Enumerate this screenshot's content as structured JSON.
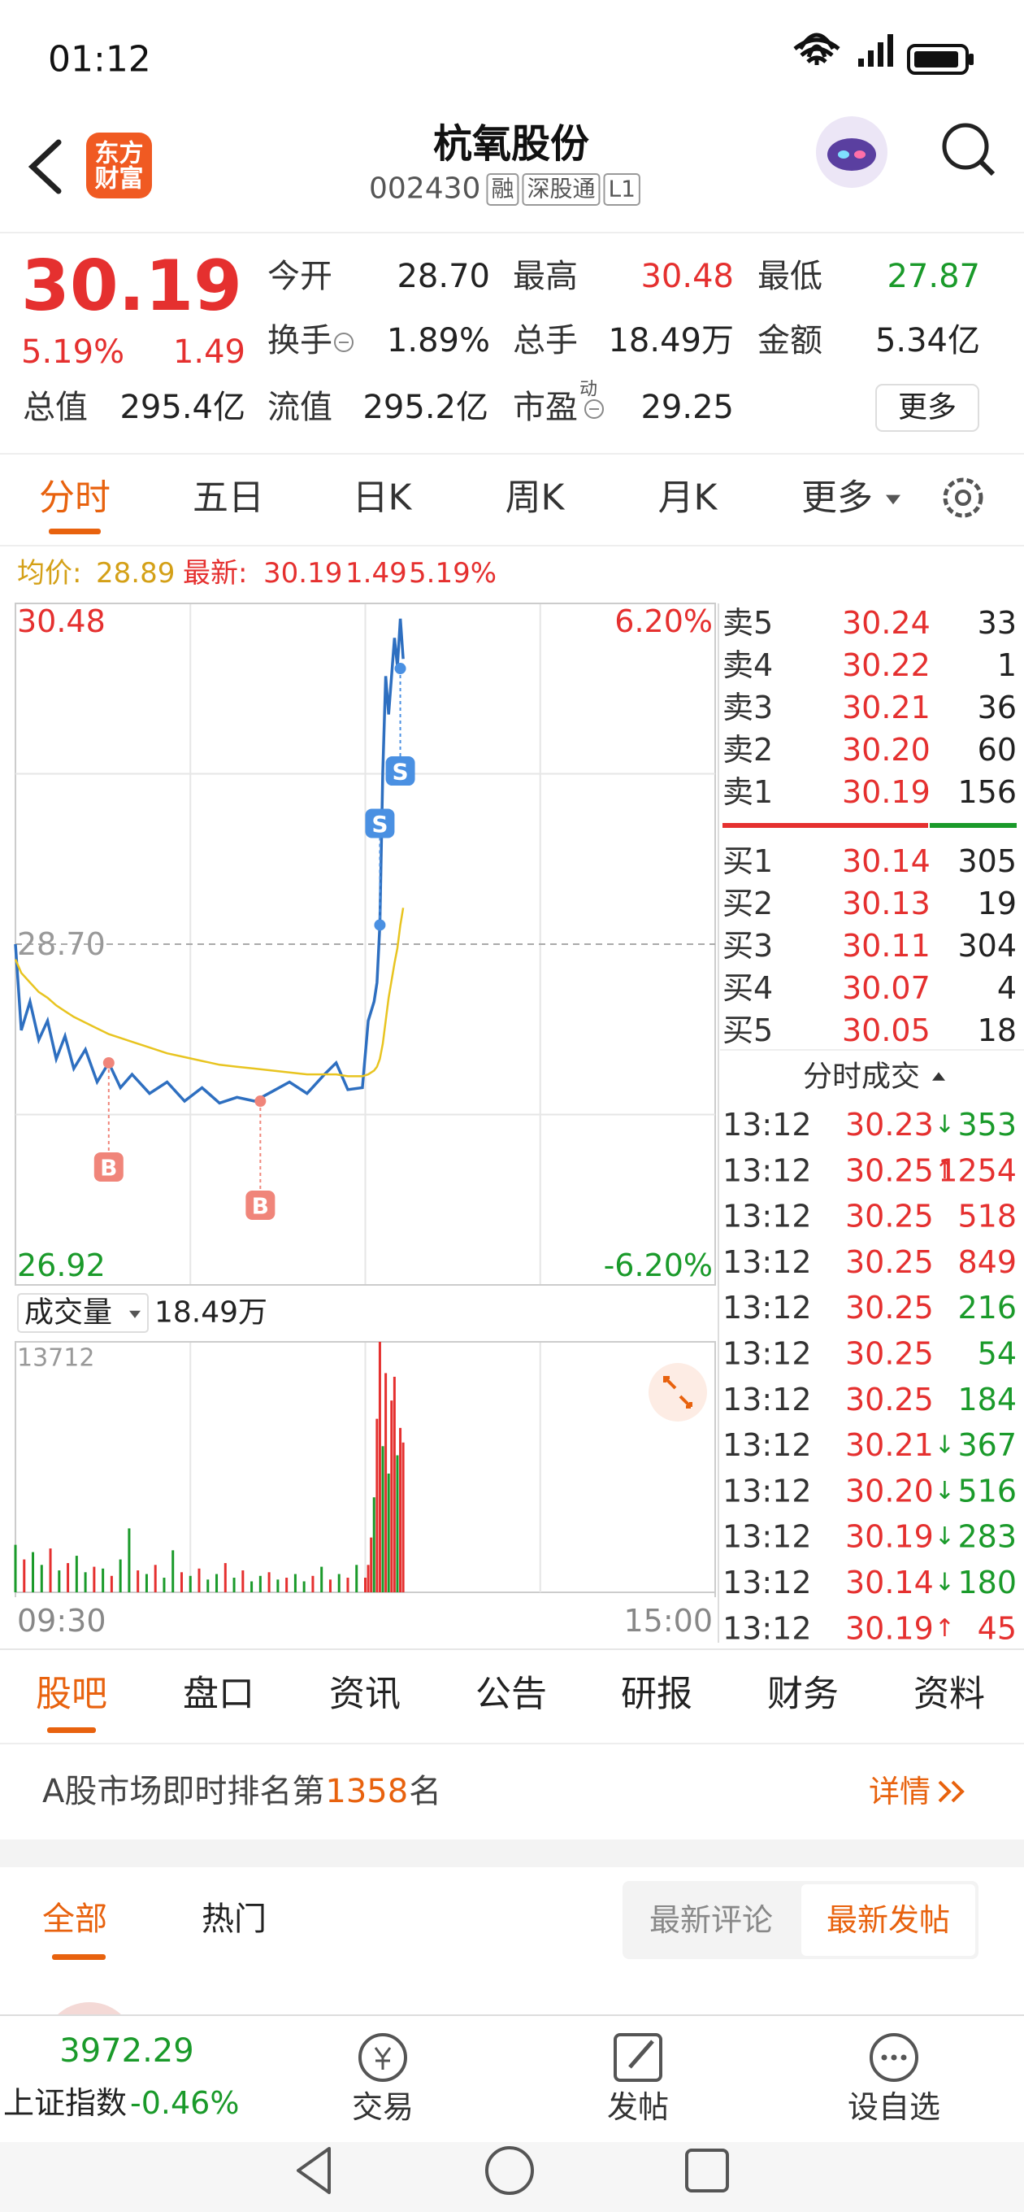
{
  "status_bar": {
    "time": "01:12"
  },
  "header": {
    "logo": [
      "东方",
      "财富"
    ],
    "title": "杭氧股份",
    "code": "002430",
    "tags": [
      "融",
      "深股通",
      "L1"
    ]
  },
  "quote": {
    "price": "30.19",
    "change_pct": "5.19%",
    "change": "1.49",
    "fields": [
      {
        "label": "今开",
        "value": "28.70"
      },
      {
        "label": "最高",
        "value": "30.48",
        "color": "#e5302f"
      },
      {
        "label": "最低",
        "value": "27.87",
        "color": "#1a9a2a"
      },
      {
        "label": "换手",
        "value": "1.89%",
        "info_icon": true
      },
      {
        "label": "总手",
        "value": "18.49万"
      },
      {
        "label": "金额",
        "value": "5.34亿"
      },
      {
        "label": "总值",
        "value": "295.4亿"
      },
      {
        "label": "流值",
        "value": "295.2亿"
      },
      {
        "label": "市盈",
        "sup": "动",
        "value": "29.25",
        "info_icon": true
      }
    ],
    "more_button": "更多"
  },
  "tabs": {
    "items": [
      "分时",
      "五日",
      "日K",
      "周K",
      "月K",
      "更多"
    ],
    "active": 0
  },
  "info_line": {
    "avg_label": "均价:",
    "avg": "28.89",
    "last_label": "最新:",
    "last": "30.19",
    "change": "1.49",
    "change_pct": "5.19%"
  },
  "chart_data": {
    "type": "line",
    "x": [
      0,
      2,
      5,
      8,
      11,
      14,
      17,
      20,
      24,
      28,
      32,
      36,
      40,
      46,
      52,
      58,
      64,
      70,
      76,
      82,
      88,
      94,
      100,
      106,
      110,
      114,
      119,
      121,
      123,
      124,
      125,
      126,
      127,
      128,
      130,
      131,
      132,
      133
    ],
    "series": [
      {
        "color": "#2e6fc0",
        "values": [
          28.7,
          28.25,
          28.4,
          28.2,
          28.3,
          28.1,
          28.22,
          28.05,
          28.15,
          27.98,
          28.08,
          27.95,
          28.02,
          27.92,
          27.98,
          27.88,
          27.95,
          27.87,
          27.9,
          27.88,
          27.93,
          27.98,
          27.92,
          28.02,
          28.08,
          27.94,
          27.95,
          28.3,
          28.4,
          28.5,
          28.8,
          29.6,
          30.1,
          29.9,
          30.3,
          30.15,
          30.4,
          30.19
        ]
      },
      {
        "color": "#e8c420",
        "values": [
          28.62,
          28.55,
          28.5,
          28.45,
          28.42,
          28.38,
          28.35,
          28.32,
          28.29,
          28.26,
          28.23,
          28.21,
          28.19,
          28.16,
          28.13,
          28.11,
          28.09,
          28.07,
          28.06,
          28.05,
          28.04,
          28.03,
          28.02,
          28.02,
          28.02,
          28.01,
          28.01,
          28.02,
          28.04,
          28.06,
          28.1,
          28.18,
          28.3,
          28.42,
          28.6,
          28.68,
          28.8,
          28.89
        ]
      }
    ],
    "xlim": [
      0,
      240
    ],
    "xticks": [
      {
        "value": 0,
        "label": "09:30"
      },
      {
        "value": 240,
        "label": "15:00"
      }
    ],
    "ylim": [
      26.92,
      30.48
    ],
    "yticks": [
      26.92,
      {
        "value": 28.7,
        "label": "28.70"
      },
      30.48
    ],
    "ytick_colors": [
      "#1a9a2a",
      "#999999",
      "#e5302f"
    ],
    "y2lim": [
      -6.2,
      6.2
    ],
    "y2ticks": [
      {
        "value": -6.2,
        "label": "-6.20%"
      },
      {
        "value": 6.2,
        "label": "6.20%"
      }
    ],
    "y2tick_colors": [
      "#1a9a2a",
      "#e5302f"
    ],
    "trade_marks": [
      {
        "label": "B",
        "x": 32,
        "price": 28.08
      },
      {
        "label": "B",
        "x": 84,
        "price": 27.88
      },
      {
        "label": "S",
        "x": 125,
        "price": 28.8
      },
      {
        "label": "S",
        "x": 132,
        "price": 30.14
      }
    ],
    "volume": {
      "label": "成交量",
      "total": "18.49万",
      "x": [
        0,
        3,
        6,
        9,
        12,
        15,
        18,
        21,
        24,
        27,
        30,
        33,
        36,
        39,
        42,
        45,
        48,
        51,
        54,
        57,
        60,
        63,
        66,
        69,
        72,
        75,
        78,
        81,
        84,
        87,
        90,
        93,
        96,
        99,
        102,
        105,
        108,
        111,
        114,
        117,
        120,
        121,
        122,
        123,
        124,
        125,
        126,
        127,
        128,
        129,
        130,
        131,
        132,
        133
      ],
      "values": [
        2600,
        1800,
        2200,
        1500,
        2400,
        1200,
        1600,
        2000,
        1100,
        1400,
        1300,
        900,
        1800,
        3500,
        1200,
        1000,
        1500,
        800,
        2300,
        1100,
        900,
        1300,
        700,
        1000,
        1600,
        800,
        1200,
        600,
        900,
        1100,
        700,
        800,
        1000,
        600,
        900,
        1400,
        700,
        1000,
        800,
        1500,
        800,
        1500,
        3000,
        5200,
        9500,
        13712,
        8000,
        12000,
        6500,
        10500,
        11800,
        7500,
        9000,
        8200
      ],
      "colors": [
        "#1a9a2a",
        "#e5302f",
        "#1a9a2a",
        "#1a9a2a",
        "#e5302f",
        "#1a9a2a",
        "#e5302f",
        "#1a9a2a",
        "#1a9a2a",
        "#e5302f",
        "#1a9a2a",
        "#e5302f",
        "#1a9a2a",
        "#1a9a2a",
        "#e5302f",
        "#1a9a2a",
        "#e5302f",
        "#1a9a2a",
        "#1a9a2a",
        "#e5302f",
        "#1a9a2a",
        "#e5302f",
        "#1a9a2a",
        "#1a9a2a",
        "#e5302f",
        "#1a9a2a",
        "#e5302f",
        "#1a9a2a",
        "#1a9a2a",
        "#e5302f",
        "#1a9a2a",
        "#e5302f",
        "#1a9a2a",
        "#1a9a2a",
        "#e5302f",
        "#1a9a2a",
        "#e5302f",
        "#1a9a2a",
        "#e5302f",
        "#1a9a2a",
        "#e5302f",
        "#e5302f",
        "#e5302f",
        "#1a9a2a",
        "#e5302f",
        "#e5302f",
        "#1a9a2a",
        "#e5302f",
        "#1a9a2a",
        "#e5302f",
        "#e5302f",
        "#1a9a2a",
        "#e5302f",
        "#e5302f"
      ],
      "ylim": [
        0,
        13712
      ],
      "yticks": [
        13712
      ]
    }
  },
  "order_book": {
    "asks": [
      {
        "label": "卖5",
        "price": "30.24",
        "volume": "33"
      },
      {
        "label": "卖4",
        "price": "30.22",
        "volume": "1"
      },
      {
        "label": "卖3",
        "price": "30.21",
        "volume": "36"
      },
      {
        "label": "卖2",
        "price": "30.20",
        "volume": "60"
      },
      {
        "label": "卖1",
        "price": "30.19",
        "volume": "156"
      }
    ],
    "bids": [
      {
        "label": "买1",
        "price": "30.14",
        "volume": "305"
      },
      {
        "label": "买2",
        "price": "30.13",
        "volume": "19"
      },
      {
        "label": "买3",
        "price": "30.11",
        "volume": "304"
      },
      {
        "label": "买4",
        "price": "30.07",
        "volume": "4"
      },
      {
        "label": "买5",
        "price": "30.05",
        "volume": "18"
      }
    ],
    "trades_title": "分时成交",
    "trades": [
      {
        "time": "13:12",
        "price": "30.23",
        "arrow": "↓",
        "volume": "353",
        "color": "#1a9a2a"
      },
      {
        "time": "13:12",
        "price": "30.25",
        "arrow": "↑",
        "volume": "1254",
        "color": "#e5302f"
      },
      {
        "time": "13:12",
        "price": "30.25",
        "volume": "518",
        "color": "#e5302f"
      },
      {
        "time": "13:12",
        "price": "30.25",
        "volume": "849",
        "color": "#e5302f"
      },
      {
        "time": "13:12",
        "price": "30.25",
        "volume": "216",
        "color": "#1a9a2a"
      },
      {
        "time": "13:12",
        "price": "30.25",
        "volume": "54",
        "color": "#1a9a2a"
      },
      {
        "time": "13:12",
        "price": "30.25",
        "volume": "184",
        "color": "#1a9a2a"
      },
      {
        "time": "13:12",
        "price": "30.21",
        "arrow": "↓",
        "volume": "367",
        "color": "#1a9a2a"
      },
      {
        "time": "13:12",
        "price": "30.20",
        "arrow": "↓",
        "volume": "516",
        "color": "#1a9a2a"
      },
      {
        "time": "13:12",
        "price": "30.19",
        "arrow": "↓",
        "volume": "283",
        "color": "#1a9a2a"
      },
      {
        "time": "13:12",
        "price": "30.14",
        "arrow": "↓",
        "volume": "180",
        "color": "#1a9a2a"
      },
      {
        "time": "13:12",
        "price": "30.19",
        "arrow": "↑",
        "volume": "45",
        "color": "#e5302f"
      }
    ]
  },
  "section_tabs": {
    "items": [
      "股吧",
      "盘口",
      "资讯",
      "公告",
      "研报",
      "财务",
      "资料"
    ],
    "active": 0
  },
  "rank": {
    "prefix": "A股市场即时排名第",
    "rank": "1358",
    "suffix": "名",
    "link": "详情"
  },
  "filters": {
    "items": [
      "全部",
      "热门"
    ],
    "active": 0,
    "sort": [
      "最新评论",
      "最新发帖"
    ],
    "sort_active": 1
  },
  "bottom_nav": {
    "index_value": "3972.29",
    "index_name": "上证指数",
    "index_change": "-0.46%",
    "items": [
      "交易",
      "发帖",
      "设自选"
    ]
  }
}
